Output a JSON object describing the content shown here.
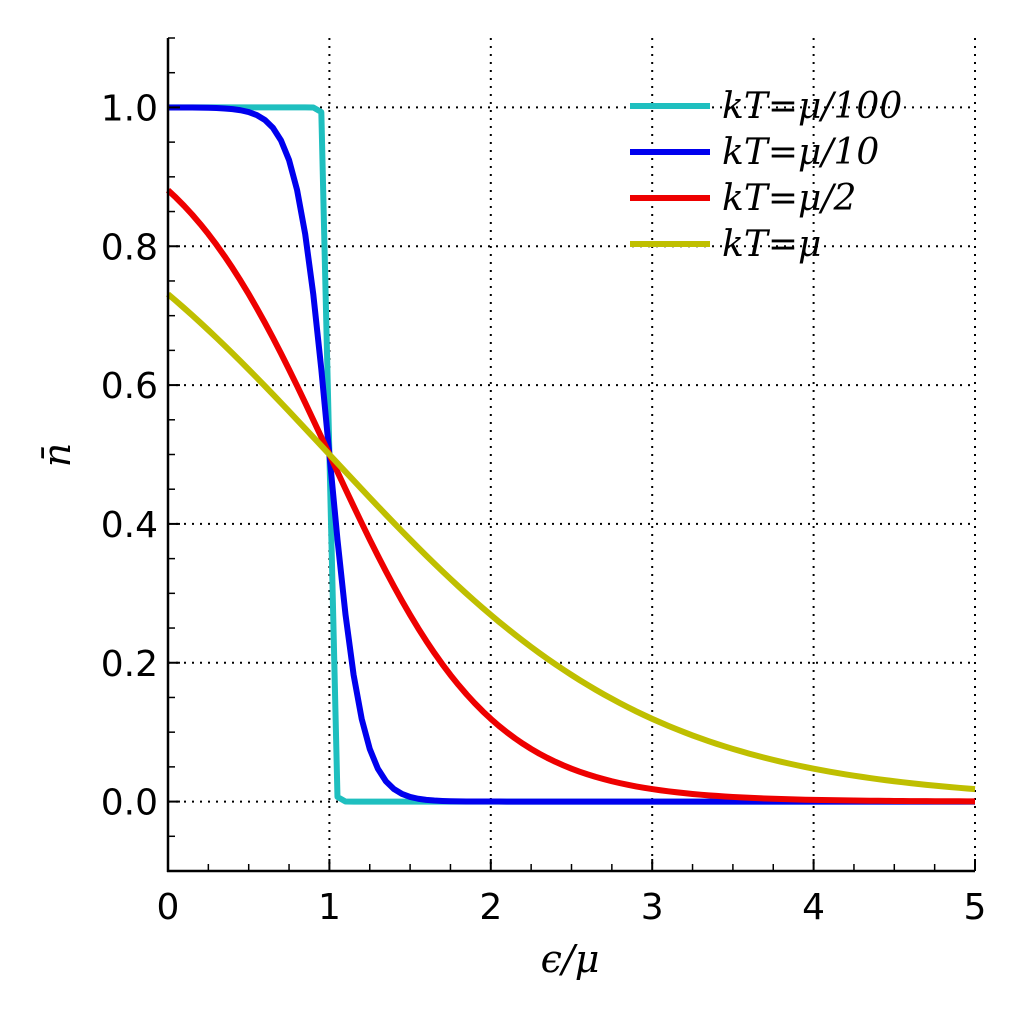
{
  "chart_data": {
    "type": "line",
    "title": "",
    "xlabel": "ϵ/μ",
    "ylabel": "n̄",
    "xlim": [
      0,
      5
    ],
    "ylim": [
      -0.1,
      1.1
    ],
    "x_ticks": [
      0,
      1,
      2,
      3,
      4,
      5
    ],
    "x_tick_labels": [
      "0",
      "1",
      "2",
      "3",
      "4",
      "5"
    ],
    "y_ticks": [
      0.0,
      0.2,
      0.4,
      0.6,
      0.8,
      1.0
    ],
    "y_tick_labels": [
      "0.0",
      "0.2",
      "0.4",
      "0.6",
      "0.8",
      "1.0"
    ],
    "grid": true,
    "legend_position": "top-right",
    "series": [
      {
        "name": "kT=μ/100",
        "color": "#1fbfbf",
        "kT": 0.01,
        "x": [
          0,
          0.5,
          0.9,
          0.95,
          1.0,
          1.05,
          1.1,
          2,
          3,
          4,
          5
        ],
        "y": [
          1.0,
          1.0,
          1.0,
          0.993,
          0.5,
          0.007,
          0.0,
          0.0,
          0.0,
          0.0,
          0.0
        ]
      },
      {
        "name": "kT=μ/10",
        "color": "#0000ee",
        "kT": 0.1,
        "x": [
          0,
          0.5,
          0.8,
          0.9,
          1.0,
          1.1,
          1.2,
          1.4,
          1.6,
          2,
          3,
          4,
          5
        ],
        "y": [
          1.0,
          0.993,
          0.881,
          0.731,
          0.5,
          0.269,
          0.119,
          0.018,
          0.002,
          0.0,
          0.0,
          0.0,
          0.0
        ]
      },
      {
        "name": "kT=μ/2",
        "color": "#ee0000",
        "kT": 0.5,
        "x": [
          0,
          0.5,
          1.0,
          1.5,
          2,
          2.5,
          3,
          3.5,
          4,
          4.5,
          5
        ],
        "y": [
          0.881,
          0.731,
          0.5,
          0.269,
          0.119,
          0.047,
          0.018,
          0.007,
          0.002,
          0.001,
          0.0
        ]
      },
      {
        "name": "kT=μ",
        "color": "#bfbf00",
        "kT": 1.0,
        "x": [
          0,
          0.5,
          1.0,
          1.5,
          2,
          2.5,
          3,
          3.5,
          4,
          4.5,
          5
        ],
        "y": [
          0.731,
          0.622,
          0.5,
          0.378,
          0.269,
          0.182,
          0.119,
          0.076,
          0.047,
          0.029,
          0.018
        ]
      }
    ]
  }
}
